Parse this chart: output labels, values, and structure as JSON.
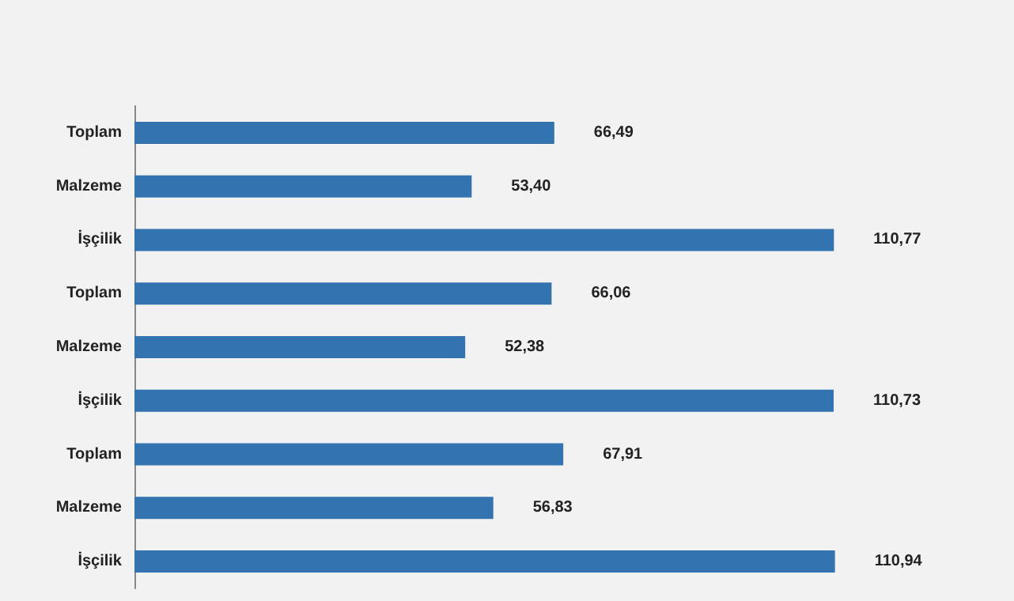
{
  "chart_data": {
    "type": "bar",
    "orientation": "horizontal",
    "categories": [
      "Toplam",
      "Malzeme",
      "İşçilik",
      "Toplam",
      "Malzeme",
      "İşçilik",
      "Toplam",
      "Malzeme",
      "İşçilik"
    ],
    "values": [
      66.49,
      53.4,
      110.77,
      66.06,
      52.38,
      110.73,
      67.91,
      56.83,
      110.94
    ],
    "value_labels": [
      "66,49",
      "53,40",
      "110,77",
      "66,06",
      "52,38",
      "110,73",
      "67,91",
      "56,83",
      "110,94"
    ],
    "color": "#3373b0"
  }
}
